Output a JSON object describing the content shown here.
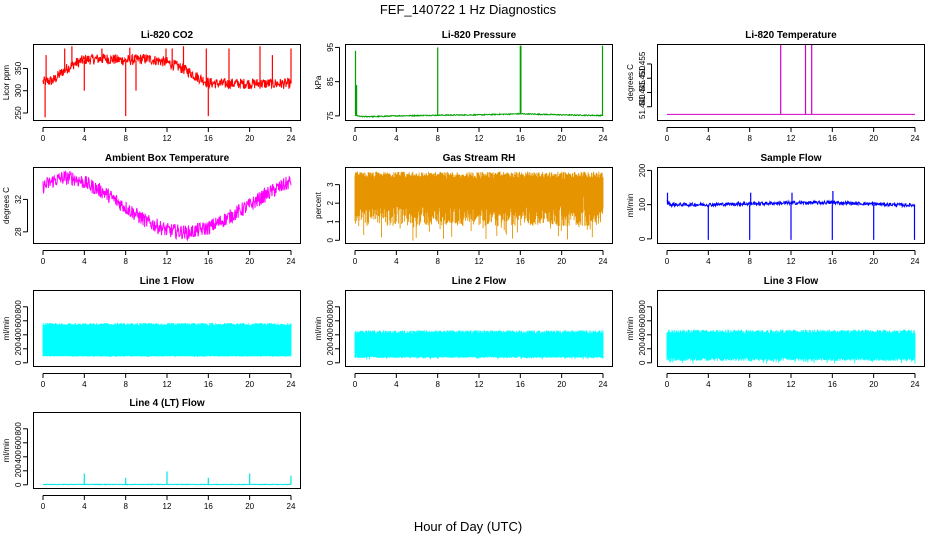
{
  "figure": {
    "title": "FEF_140722  1 Hz Diagnostics",
    "xlabel": "Hour of Day (UTC)"
  },
  "chart_data": [
    {
      "id": "co2",
      "type": "line",
      "title": "Li-820 CO2",
      "ylabel": "Licor ppm",
      "color": "#ff0000",
      "xlim": [
        0,
        24
      ],
      "ylim": [
        232,
        405
      ],
      "xticks": [
        "0",
        "4",
        "8",
        "12",
        "16",
        "20",
        "24"
      ],
      "yticks": [
        {
          "v": 250,
          "label": "250"
        },
        {
          "v": 300,
          "label": "300"
        },
        {
          "v": 350,
          "label": "350"
        }
      ],
      "noise": 12,
      "series": [
        {
          "x": [
            0,
            1,
            2,
            3,
            4,
            6,
            8,
            10,
            12,
            13,
            14,
            15,
            16,
            17,
            20,
            24
          ],
          "y": [
            320,
            323,
            345,
            360,
            370,
            372,
            368,
            372,
            364,
            355,
            344,
            330,
            318,
            316,
            316,
            316
          ]
        }
      ],
      "spikes": [
        {
          "x": 0.2,
          "y0": 320,
          "y1": 240
        },
        {
          "x": 0.3,
          "y0": 320,
          "y1": 380
        },
        {
          "x": 2.1,
          "y0": 340,
          "y1": 395
        },
        {
          "x": 2.8,
          "y0": 355,
          "y1": 400
        },
        {
          "x": 4.0,
          "y0": 368,
          "y1": 300
        },
        {
          "x": 5.7,
          "y0": 370,
          "y1": 395
        },
        {
          "x": 8.0,
          "y0": 368,
          "y1": 243
        },
        {
          "x": 8.4,
          "y0": 368,
          "y1": 397
        },
        {
          "x": 9.0,
          "y0": 368,
          "y1": 300
        },
        {
          "x": 11.9,
          "y0": 364,
          "y1": 395
        },
        {
          "x": 12.5,
          "y0": 362,
          "y1": 395
        },
        {
          "x": 13.6,
          "y0": 350,
          "y1": 400
        },
        {
          "x": 15.8,
          "y0": 320,
          "y1": 395
        },
        {
          "x": 16.0,
          "y0": 320,
          "y1": 243
        },
        {
          "x": 18.0,
          "y0": 316,
          "y1": 395
        },
        {
          "x": 21.0,
          "y0": 316,
          "y1": 400
        },
        {
          "x": 22.2,
          "y0": 316,
          "y1": 380
        },
        {
          "x": 24.0,
          "y0": 316,
          "y1": 395
        }
      ]
    },
    {
      "id": "pressure",
      "type": "line",
      "title": "Li-820 Pressure",
      "ylabel": "kPa",
      "color": "#00a000",
      "xlim": [
        0,
        24
      ],
      "ylim": [
        73.5,
        96
      ],
      "xticks": [
        "0",
        "4",
        "8",
        "12",
        "16",
        "20",
        "24"
      ],
      "yticks": [
        {
          "v": 75,
          "label": "75"
        },
        {
          "v": 85,
          "label": "85"
        },
        {
          "v": 95,
          "label": "95"
        }
      ],
      "noise": 0.15,
      "series": [
        {
          "x": [
            0,
            0.5,
            2,
            4,
            8,
            12,
            16,
            20,
            23.8,
            24
          ],
          "y": [
            75.2,
            74.8,
            74.8,
            75.0,
            75.2,
            75.3,
            75.6,
            75.3,
            75.1,
            75.2
          ]
        }
      ],
      "spikes": [
        {
          "x": 0.05,
          "y0": 75,
          "y1": 94
        },
        {
          "x": 0.15,
          "y0": 75,
          "y1": 84
        },
        {
          "x": 8.0,
          "y0": 75,
          "y1": 95
        },
        {
          "x": 16.0,
          "y0": 75.5,
          "y1": 95.5
        },
        {
          "x": 16.05,
          "y0": 75.5,
          "y1": 95.5
        },
        {
          "x": 23.95,
          "y0": 75,
          "y1": 95.5
        }
      ]
    },
    {
      "id": "licor_temp",
      "type": "line",
      "title": "Li-820 Temperature",
      "ylabel": "degrees C",
      "color": "#cc00cc",
      "xlim": [
        0,
        24
      ],
      "ylim": [
        51.435,
        51.462
      ],
      "xticks": [
        "0",
        "4",
        "8",
        "12",
        "16",
        "20",
        "24"
      ],
      "yticks": [
        {
          "v": 51.44,
          "label": "51.440"
        },
        {
          "v": 51.445,
          "label": "51.445"
        },
        {
          "v": 51.45,
          "label": "51.450"
        },
        {
          "v": 51.455,
          "label": "51.455"
        }
      ],
      "noise": 0,
      "series": [
        {
          "x": [
            0,
            24
          ],
          "y": [
            51.4373,
            51.4373
          ]
        }
      ],
      "spikes": [
        {
          "x": 11.0,
          "y0": 51.4373,
          "y1": 51.47
        },
        {
          "x": 13.4,
          "y0": 51.4373,
          "y1": 51.47
        },
        {
          "x": 14.0,
          "y0": 51.4373,
          "y1": 51.47
        }
      ]
    },
    {
      "id": "box_temp",
      "type": "line",
      "title": "Ambient Box Temperature",
      "ylabel": "degrees C",
      "color": "#ff00ff",
      "xlim": [
        0,
        24
      ],
      "ylim": [
        26.5,
        36
      ],
      "xticks": [
        "0",
        "4",
        "8",
        "12",
        "16",
        "20",
        "24"
      ],
      "yticks": [
        {
          "v": 28,
          "label": "28"
        },
        {
          "v": 32,
          "label": "32"
        }
      ],
      "noise": 0.9,
      "series": [
        {
          "x": [
            0,
            1,
            2,
            3,
            4,
            6,
            8,
            10,
            12,
            14,
            16,
            18,
            20,
            22,
            24
          ],
          "y": [
            33.6,
            34.3,
            34.7,
            34.6,
            34.1,
            32.8,
            31.0,
            29.3,
            28.2,
            27.9,
            28.5,
            29.8,
            31.3,
            32.9,
            34.2
          ]
        }
      ],
      "spikes": []
    },
    {
      "id": "rh",
      "type": "line",
      "title": "Gas Stream RH",
      "ylabel": "percent",
      "color": "#e69500",
      "xlim": [
        0,
        24
      ],
      "ylim": [
        -0.2,
        3.95
      ],
      "xticks": [
        "0",
        "4",
        "8",
        "12",
        "16",
        "20",
        "24"
      ],
      "yticks": [
        {
          "v": 0,
          "label": "0"
        },
        {
          "v": 1,
          "label": "1"
        },
        {
          "v": 2,
          "label": "2"
        },
        {
          "v": 3,
          "label": "3"
        }
      ],
      "band": {
        "lo_base": 1.3,
        "lo_amp": 0.9,
        "hi_base": 3.5,
        "hi_amp": 0.2
      },
      "series": [
        {
          "x": [
            0,
            24
          ],
          "y": [
            3.5,
            3.5
          ]
        }
      ],
      "spikes": []
    },
    {
      "id": "sample_flow",
      "type": "line",
      "title": "Sample Flow",
      "ylabel": "ml/min",
      "color": "#0000ff",
      "xlim": [
        0,
        24
      ],
      "ylim": [
        -15,
        210
      ],
      "xticks": [
        "0",
        "4",
        "8",
        "12",
        "16",
        "20",
        "24"
      ],
      "yticks": [
        {
          "v": 0,
          "label": "0"
        },
        {
          "v": 100,
          "label": "100"
        },
        {
          "v": 200,
          "label": "200"
        }
      ],
      "noise": 5,
      "series": [
        {
          "x": [
            0,
            0.3,
            4,
            8,
            12,
            16,
            20,
            24
          ],
          "y": [
            110,
            100,
            100,
            103,
            105,
            106,
            102,
            98
          ]
        }
      ],
      "spikes": [
        {
          "x": 0.05,
          "y0": 100,
          "y1": 135
        },
        {
          "x": 4.0,
          "y0": 100,
          "y1": -3
        },
        {
          "x": 8.0,
          "y0": 100,
          "y1": -3
        },
        {
          "x": 8.1,
          "y0": 100,
          "y1": 135
        },
        {
          "x": 12.0,
          "y0": 100,
          "y1": -3
        },
        {
          "x": 12.1,
          "y0": 100,
          "y1": 135
        },
        {
          "x": 16.0,
          "y0": 100,
          "y1": -3
        },
        {
          "x": 16.05,
          "y0": 100,
          "y1": 140
        },
        {
          "x": 20.0,
          "y0": 100,
          "y1": -3
        },
        {
          "x": 23.95,
          "y0": 100,
          "y1": -3
        }
      ]
    },
    {
      "id": "line1",
      "type": "line",
      "title": "Line 1 Flow",
      "ylabel": "ml/min",
      "color": "#00ffff",
      "xlim": [
        0,
        24
      ],
      "ylim": [
        -60,
        1040
      ],
      "xticks": [
        "0",
        "4",
        "8",
        "12",
        "16",
        "20",
        "24"
      ],
      "yticks": [
        {
          "v": 0,
          "label": "0"
        },
        {
          "v": 200,
          "label": "200"
        },
        {
          "v": 400,
          "label": "400"
        },
        {
          "v": 600,
          "label": "600"
        },
        {
          "v": 800,
          "label": "800"
        }
      ],
      "band": {
        "lo_base": 95,
        "lo_amp": 8,
        "hi_base": 550,
        "hi_amp": 20
      },
      "gaps": [
        4.0,
        8.0,
        12.0,
        16.0,
        20.0
      ],
      "series": [
        {
          "x": [
            0,
            24
          ],
          "y": [
            550,
            550
          ]
        }
      ],
      "spikes": []
    },
    {
      "id": "line2",
      "type": "line",
      "title": "Line 2 Flow",
      "ylabel": "ml/min",
      "color": "#00ffff",
      "xlim": [
        0,
        24
      ],
      "ylim": [
        -60,
        1040
      ],
      "xticks": [
        "0",
        "4",
        "8",
        "12",
        "16",
        "20",
        "24"
      ],
      "yticks": [
        {
          "v": 0,
          "label": "0"
        },
        {
          "v": 200,
          "label": "200"
        },
        {
          "v": 400,
          "label": "400"
        },
        {
          "v": 600,
          "label": "600"
        },
        {
          "v": 800,
          "label": "800"
        }
      ],
      "band": {
        "lo_base": 80,
        "lo_amp": 20,
        "hi_base": 440,
        "hi_amp": 25
      },
      "gaps": [],
      "series": [
        {
          "x": [
            0,
            24
          ],
          "y": [
            440,
            440
          ]
        }
      ],
      "spikes": []
    },
    {
      "id": "line3",
      "type": "line",
      "title": "Line 3 Flow",
      "ylabel": "ml/min",
      "color": "#00ffff",
      "xlim": [
        0,
        24
      ],
      "ylim": [
        -60,
        1040
      ],
      "xticks": [
        "0",
        "4",
        "8",
        "12",
        "16",
        "20",
        "24"
      ],
      "yticks": [
        {
          "v": 0,
          "label": "0"
        },
        {
          "v": 200,
          "label": "200"
        },
        {
          "v": 400,
          "label": "400"
        },
        {
          "v": 600,
          "label": "600"
        },
        {
          "v": 800,
          "label": "800"
        }
      ],
      "band": {
        "lo_base": 50,
        "lo_amp": 40,
        "hi_base": 445,
        "hi_amp": 30
      },
      "gaps": [],
      "series": [
        {
          "x": [
            0,
            24
          ],
          "y": [
            445,
            445
          ]
        }
      ],
      "spikes": []
    },
    {
      "id": "line4",
      "type": "line",
      "title": "Line 4 (LT) Flow",
      "ylabel": "ml/min",
      "color": "#00e5e5",
      "xlim": [
        0,
        24
      ],
      "ylim": [
        -60,
        1040
      ],
      "xticks": [
        "0",
        "4",
        "8",
        "12",
        "16",
        "20",
        "24"
      ],
      "yticks": [
        {
          "v": 0,
          "label": "0"
        },
        {
          "v": 200,
          "label": "200"
        },
        {
          "v": 400,
          "label": "400"
        },
        {
          "v": 600,
          "label": "600"
        },
        {
          "v": 800,
          "label": "800"
        }
      ],
      "noise": 4,
      "series": [
        {
          "x": [
            0,
            24
          ],
          "y": [
            5,
            5
          ]
        }
      ],
      "spikes": [
        {
          "x": 4.0,
          "y0": 5,
          "y1": 160
        },
        {
          "x": 8.0,
          "y0": 5,
          "y1": 100
        },
        {
          "x": 12.0,
          "y0": 5,
          "y1": 190
        },
        {
          "x": 16.0,
          "y0": 5,
          "y1": 100
        },
        {
          "x": 20.0,
          "y0": 5,
          "y1": 160
        },
        {
          "x": 24.0,
          "y0": 5,
          "y1": 130
        }
      ]
    }
  ]
}
